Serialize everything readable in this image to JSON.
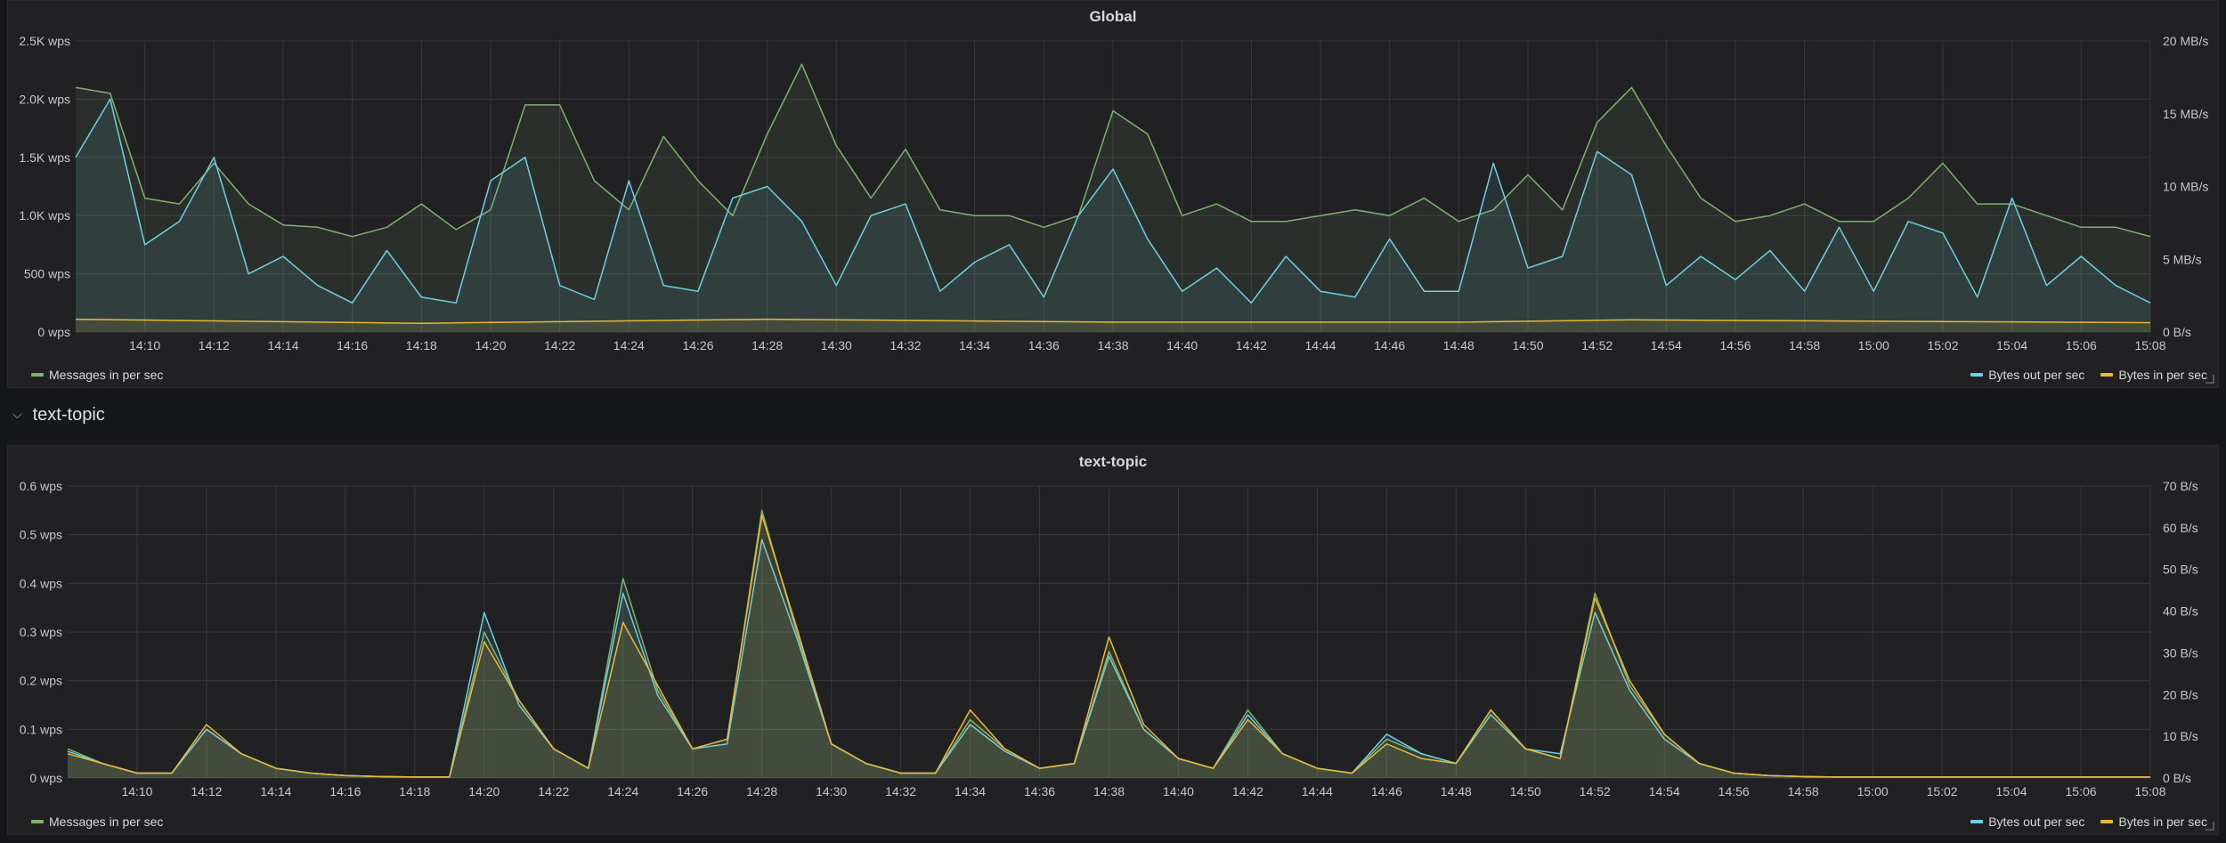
{
  "panels": {
    "global": {
      "title": "Global"
    },
    "topic": {
      "title": "text-topic"
    }
  },
  "row": {
    "title": "text-topic"
  },
  "legend": {
    "messages_in": "Messages in per sec",
    "bytes_out": "Bytes out per sec",
    "bytes_in": "Bytes in per sec"
  },
  "colors": {
    "messages_in": "#7eb26d",
    "bytes_out": "#6ed0e0",
    "bytes_in": "#eab839",
    "grid": "#38383b"
  },
  "chart_data": [
    {
      "type": "line",
      "title": "Global",
      "x_ticks": [
        "14:10",
        "14:12",
        "14:14",
        "14:16",
        "14:18",
        "14:20",
        "14:22",
        "14:24",
        "14:26",
        "14:28",
        "14:30",
        "14:32",
        "14:34",
        "14:36",
        "14:38",
        "14:40",
        "14:42",
        "14:44",
        "14:46",
        "14:48",
        "14:50",
        "14:52",
        "14:54",
        "14:56",
        "14:58",
        "15:00",
        "15:02",
        "15:04",
        "15:06",
        "15:08"
      ],
      "x_range": [
        "14:08",
        "15:08"
      ],
      "y_left": {
        "ticks": [
          "0 wps",
          "500 wps",
          "1.0K wps",
          "1.5K wps",
          "2.0K wps",
          "2.5K wps"
        ],
        "min": 0,
        "max": 2500
      },
      "y_right": {
        "ticks": [
          "0 B/s",
          "5 MB/s",
          "10 MB/s",
          "15 MB/s",
          "20 MB/s"
        ],
        "min": 0,
        "max": 20
      },
      "series": [
        {
          "name": "Messages in per sec",
          "axis": "left",
          "times": [
            "14:08",
            "14:09",
            "14:10",
            "14:11",
            "14:12",
            "14:13",
            "14:14",
            "14:15",
            "14:16",
            "14:17",
            "14:18",
            "14:19",
            "14:20",
            "14:21",
            "14:22",
            "14:23",
            "14:24",
            "14:25",
            "14:26",
            "14:27",
            "14:28",
            "14:29",
            "14:30",
            "14:31",
            "14:32",
            "14:33",
            "14:34",
            "14:35",
            "14:36",
            "14:37",
            "14:38",
            "14:39",
            "14:40",
            "14:41",
            "14:42",
            "14:43",
            "14:44",
            "14:45",
            "14:46",
            "14:47",
            "14:48",
            "14:49",
            "14:50",
            "14:51",
            "14:52",
            "14:53",
            "14:54",
            "14:55",
            "14:56",
            "14:57",
            "14:58",
            "14:59",
            "15:00",
            "15:01",
            "15:02",
            "15:03",
            "15:04",
            "15:05",
            "15:06",
            "15:07",
            "15:08"
          ],
          "values": [
            2100,
            2050,
            1150,
            1100,
            1450,
            1100,
            920,
            900,
            820,
            900,
            1100,
            880,
            1050,
            1950,
            1950,
            1300,
            1050,
            1680,
            1300,
            1000,
            1700,
            2300,
            1600,
            1150,
            1570,
            1050,
            1000,
            1000,
            900,
            1000,
            1900,
            1700,
            1000,
            1100,
            950,
            950,
            1000,
            1050,
            1000,
            1150,
            950,
            1050,
            1350,
            1050,
            1800,
            2100,
            1600,
            1150,
            950,
            1000,
            1100,
            950,
            950,
            1150,
            1450,
            1100,
            1100,
            1000,
            900,
            900,
            820
          ]
        },
        {
          "name": "Bytes out per sec",
          "axis": "left",
          "times": [
            "14:08",
            "14:09",
            "14:10",
            "14:11",
            "14:12",
            "14:13",
            "14:14",
            "14:15",
            "14:16",
            "14:17",
            "14:18",
            "14:19",
            "14:20",
            "14:21",
            "14:22",
            "14:23",
            "14:24",
            "14:25",
            "14:26",
            "14:27",
            "14:28",
            "14:29",
            "14:30",
            "14:31",
            "14:32",
            "14:33",
            "14:34",
            "14:35",
            "14:36",
            "14:37",
            "14:38",
            "14:39",
            "14:40",
            "14:41",
            "14:42",
            "14:43",
            "14:44",
            "14:45",
            "14:46",
            "14:47",
            "14:48",
            "14:49",
            "14:50",
            "14:51",
            "14:52",
            "14:53",
            "14:54",
            "14:55",
            "14:56",
            "14:57",
            "14:58",
            "14:59",
            "15:00",
            "15:01",
            "15:02",
            "15:03",
            "15:04",
            "15:05",
            "15:06",
            "15:07",
            "15:08"
          ],
          "values": [
            1500,
            2000,
            750,
            950,
            1500,
            500,
            650,
            400,
            250,
            700,
            300,
            250,
            1300,
            1500,
            400,
            280,
            1300,
            400,
            350,
            1150,
            1250,
            950,
            400,
            1000,
            1100,
            350,
            600,
            750,
            300,
            1000,
            1400,
            800,
            350,
            550,
            250,
            650,
            350,
            300,
            800,
            350,
            350,
            1450,
            550,
            650,
            1550,
            1350,
            400,
            650,
            450,
            700,
            350,
            900,
            350,
            950,
            850,
            300,
            1150,
            400,
            650,
            400,
            250
          ]
        },
        {
          "name": "Bytes in per sec",
          "axis": "left",
          "times": [
            "14:08",
            "14:18",
            "14:28",
            "14:38",
            "14:48",
            "14:53",
            "15:08"
          ],
          "values": [
            110,
            75,
            110,
            85,
            85,
            105,
            80
          ]
        }
      ],
      "legend_placement": "bottom",
      "grid": true
    },
    {
      "type": "line",
      "title": "text-topic",
      "x_ticks": [
        "14:10",
        "14:12",
        "14:14",
        "14:16",
        "14:18",
        "14:20",
        "14:22",
        "14:24",
        "14:26",
        "14:28",
        "14:30",
        "14:32",
        "14:34",
        "14:36",
        "14:38",
        "14:40",
        "14:42",
        "14:44",
        "14:46",
        "14:48",
        "14:50",
        "14:52",
        "14:54",
        "14:56",
        "14:58",
        "15:00",
        "15:02",
        "15:04",
        "15:06",
        "15:08"
      ],
      "x_range": [
        "14:08",
        "15:08"
      ],
      "y_left": {
        "ticks": [
          "0 wps",
          "0.1 wps",
          "0.2 wps",
          "0.3 wps",
          "0.4 wps",
          "0.5 wps",
          "0.6 wps"
        ],
        "min": 0,
        "max": 0.6
      },
      "y_right": {
        "ticks": [
          "0 B/s",
          "10 B/s",
          "20 B/s",
          "30 B/s",
          "40 B/s",
          "50 B/s",
          "60 B/s",
          "70 B/s"
        ],
        "min": 0,
        "max": 70
      },
      "series": [
        {
          "name": "Messages in per sec",
          "axis": "left",
          "times": [
            "14:08",
            "14:09",
            "14:10",
            "14:11",
            "14:12",
            "14:13",
            "14:14",
            "14:15",
            "14:16",
            "14:17",
            "14:18",
            "14:19",
            "14:20",
            "14:21",
            "14:22",
            "14:23",
            "14:24",
            "14:25",
            "14:26",
            "14:27",
            "14:28",
            "14:29",
            "14:30",
            "14:31",
            "14:32",
            "14:33",
            "14:34",
            "14:35",
            "14:36",
            "14:37",
            "14:38",
            "14:39",
            "14:40",
            "14:41",
            "14:42",
            "14:43",
            "14:44",
            "14:45",
            "14:46",
            "14:47",
            "14:48",
            "14:49",
            "14:50",
            "14:51",
            "14:52",
            "14:53",
            "14:54",
            "14:55",
            "14:56",
            "14:57",
            "14:58",
            "14:59",
            "15:00",
            "15:01",
            "15:02",
            "15:03",
            "15:04",
            "15:05",
            "15:06",
            "15:07",
            "15:08"
          ],
          "values": [
            0.06,
            0.03,
            0.01,
            0.01,
            0.1,
            0.05,
            0.02,
            0.01,
            0.005,
            0.003,
            0.002,
            0.002,
            0.3,
            0.16,
            0.06,
            0.02,
            0.41,
            0.18,
            0.06,
            0.08,
            0.55,
            0.3,
            0.07,
            0.03,
            0.01,
            0.01,
            0.12,
            0.06,
            0.02,
            0.03,
            0.26,
            0.1,
            0.04,
            0.02,
            0.14,
            0.05,
            0.02,
            0.01,
            0.08,
            0.05,
            0.03,
            0.14,
            0.06,
            0.04,
            0.38,
            0.19,
            0.09,
            0.03,
            0.01,
            0.005,
            0.003,
            0.002,
            0.002,
            0.002,
            0.002,
            0.002,
            0.002,
            0.002,
            0.002,
            0.002,
            0.002
          ]
        },
        {
          "name": "Bytes out per sec",
          "axis": "left",
          "times": [
            "14:08",
            "14:09",
            "14:10",
            "14:11",
            "14:12",
            "14:13",
            "14:14",
            "14:15",
            "14:16",
            "14:17",
            "14:18",
            "14:19",
            "14:20",
            "14:21",
            "14:22",
            "14:23",
            "14:24",
            "14:25",
            "14:26",
            "14:27",
            "14:28",
            "14:29",
            "14:30",
            "14:31",
            "14:32",
            "14:33",
            "14:34",
            "14:35",
            "14:36",
            "14:37",
            "14:38",
            "14:39",
            "14:40",
            "14:41",
            "14:42",
            "14:43",
            "14:44",
            "14:45",
            "14:46",
            "14:47",
            "14:48",
            "14:49",
            "14:50",
            "14:51",
            "14:52",
            "14:53",
            "14:54",
            "14:55",
            "14:56",
            "14:57",
            "14:58",
            "14:59",
            "15:00",
            "15:01",
            "15:02",
            "15:03",
            "15:04",
            "15:05",
            "15:06",
            "15:07",
            "15:08"
          ],
          "values": [
            0.055,
            0.03,
            0.01,
            0.01,
            0.1,
            0.05,
            0.02,
            0.01,
            0.005,
            0.003,
            0.002,
            0.002,
            0.34,
            0.15,
            0.06,
            0.02,
            0.38,
            0.17,
            0.06,
            0.07,
            0.49,
            0.29,
            0.07,
            0.03,
            0.01,
            0.01,
            0.11,
            0.055,
            0.02,
            0.03,
            0.25,
            0.1,
            0.04,
            0.02,
            0.13,
            0.05,
            0.02,
            0.01,
            0.09,
            0.05,
            0.03,
            0.13,
            0.06,
            0.05,
            0.34,
            0.18,
            0.08,
            0.03,
            0.01,
            0.005,
            0.003,
            0.002,
            0.002,
            0.002,
            0.002,
            0.002,
            0.002,
            0.002,
            0.002,
            0.002,
            0.002
          ]
        },
        {
          "name": "Bytes in per sec",
          "axis": "left",
          "times": [
            "14:08",
            "14:09",
            "14:10",
            "14:11",
            "14:12",
            "14:13",
            "14:14",
            "14:15",
            "14:16",
            "14:17",
            "14:18",
            "14:19",
            "14:20",
            "14:21",
            "14:22",
            "14:23",
            "14:24",
            "14:25",
            "14:26",
            "14:27",
            "14:28",
            "14:29",
            "14:30",
            "14:31",
            "14:32",
            "14:33",
            "14:34",
            "14:35",
            "14:36",
            "14:37",
            "14:38",
            "14:39",
            "14:40",
            "14:41",
            "14:42",
            "14:43",
            "14:44",
            "14:45",
            "14:46",
            "14:47",
            "14:48",
            "14:49",
            "14:50",
            "14:51",
            "14:52",
            "14:53",
            "14:54",
            "14:55",
            "14:56",
            "14:57",
            "14:58",
            "14:59",
            "15:00",
            "15:01",
            "15:02",
            "15:03",
            "15:04",
            "15:05",
            "15:06",
            "15:07",
            "15:08"
          ],
          "values": [
            0.05,
            0.03,
            0.01,
            0.01,
            0.11,
            0.05,
            0.02,
            0.01,
            0.005,
            0.003,
            0.002,
            0.002,
            0.28,
            0.16,
            0.06,
            0.02,
            0.32,
            0.19,
            0.06,
            0.08,
            0.54,
            0.31,
            0.07,
            0.03,
            0.01,
            0.01,
            0.14,
            0.06,
            0.02,
            0.03,
            0.29,
            0.11,
            0.04,
            0.02,
            0.12,
            0.05,
            0.02,
            0.01,
            0.07,
            0.04,
            0.03,
            0.14,
            0.06,
            0.04,
            0.37,
            0.2,
            0.09,
            0.03,
            0.01,
            0.005,
            0.003,
            0.002,
            0.002,
            0.002,
            0.002,
            0.002,
            0.002,
            0.002,
            0.002,
            0.002,
            0.002
          ]
        }
      ],
      "legend_placement": "bottom",
      "grid": true
    }
  ]
}
